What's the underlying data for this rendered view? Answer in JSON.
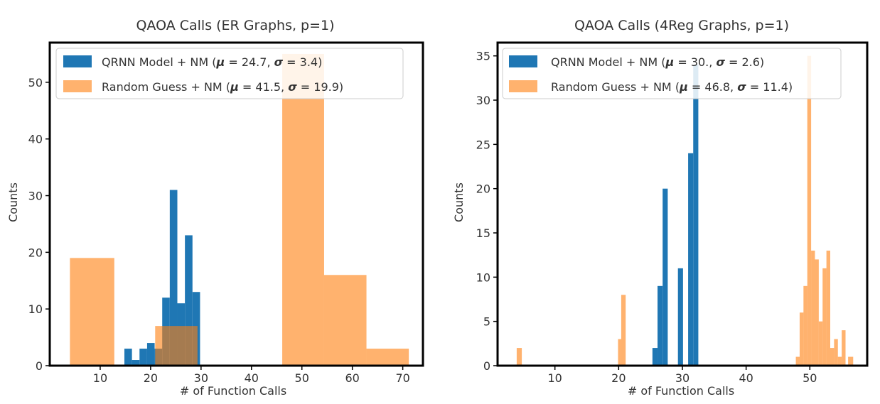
{
  "chart_data": [
    {
      "type": "histogram",
      "title": "QAOA Calls (ER Graphs, p=1)",
      "xlabel": "# of Function Calls",
      "ylabel": "Counts",
      "xlim": [
        0,
        74
      ],
      "ylim": [
        0,
        57
      ],
      "xticks": [
        10,
        20,
        30,
        40,
        50,
        60,
        70
      ],
      "yticks": [
        0,
        10,
        20,
        30,
        40,
        50
      ],
      "legend_position": "top-left",
      "series": [
        {
          "name": "QRNN Model + NM",
          "color": "#1f77b4",
          "legend_label": "QRNN Model + NM (μ = 24.7, σ = 3.4)",
          "legend_parts": [
            "QRNN Model + NM (",
            "μ",
            " = 24.7, ",
            "σ",
            " = 3.4)"
          ],
          "bins": [
            {
              "x0": 14.8,
              "x1": 16.3,
              "count": 3
            },
            {
              "x0": 16.3,
              "x1": 17.8,
              "count": 1
            },
            {
              "x0": 17.8,
              "x1": 19.3,
              "count": 3
            },
            {
              "x0": 19.3,
              "x1": 20.8,
              "count": 4
            },
            {
              "x0": 20.8,
              "x1": 22.3,
              "count": 3
            },
            {
              "x0": 22.3,
              "x1": 23.8,
              "count": 12
            },
            {
              "x0": 23.8,
              "x1": 25.3,
              "count": 31
            },
            {
              "x0": 25.3,
              "x1": 26.8,
              "count": 11
            },
            {
              "x0": 26.8,
              "x1": 28.3,
              "count": 23
            },
            {
              "x0": 28.3,
              "x1": 29.8,
              "count": 13
            }
          ]
        },
        {
          "name": "Random Guess + NM",
          "color": "#ff7f0e",
          "opacity": 0.6,
          "legend_label": "Random Guess + NM (μ = 41.5, σ = 19.9)",
          "legend_parts": [
            "Random Guess + NM (",
            "μ",
            " = 41.5, ",
            "σ",
            " = 19.9)"
          ],
          "bins": [
            {
              "x0": 4.0,
              "x1": 12.8,
              "count": 19
            },
            {
              "x0": 20.9,
              "x1": 29.3,
              "count": 7
            },
            {
              "x0": 46.1,
              "x1": 54.4,
              "count": 55
            },
            {
              "x0": 54.4,
              "x1": 62.8,
              "count": 16
            },
            {
              "x0": 62.8,
              "x1": 71.2,
              "count": 3
            }
          ]
        }
      ]
    },
    {
      "type": "histogram",
      "title": "QAOA Calls (4Reg Graphs, p=1)",
      "xlabel": "# of Function Calls",
      "ylabel": "Counts",
      "xlim": [
        1,
        59
      ],
      "ylim": [
        0,
        36.5
      ],
      "xticks": [
        10,
        20,
        30,
        40,
        50
      ],
      "yticks": [
        0,
        5,
        10,
        15,
        20,
        25,
        30,
        35
      ],
      "legend_position": "top-left",
      "series": [
        {
          "name": "QRNN Model + NM",
          "color": "#1f77b4",
          "legend_label": "QRNN Model + NM (μ = 30., σ = 2.6)",
          "legend_parts": [
            "QRNN Model + NM (",
            "μ",
            " = 30., ",
            "σ",
            " = 2.6)"
          ],
          "bins": [
            {
              "x0": 25.3,
              "x1": 26.1,
              "count": 2
            },
            {
              "x0": 26.1,
              "x1": 26.9,
              "count": 9
            },
            {
              "x0": 26.9,
              "x1": 27.7,
              "count": 20
            },
            {
              "x0": 27.7,
              "x1": 28.5,
              "count": 0
            },
            {
              "x0": 28.5,
              "x1": 29.3,
              "count": 0
            },
            {
              "x0": 29.3,
              "x1": 30.1,
              "count": 11
            },
            {
              "x0": 30.1,
              "x1": 30.9,
              "count": 0
            },
            {
              "x0": 30.9,
              "x1": 31.7,
              "count": 24
            },
            {
              "x0": 31.7,
              "x1": 32.5,
              "count": 34
            }
          ]
        },
        {
          "name": "Random Guess + NM",
          "color": "#ff7f0e",
          "opacity": 0.6,
          "legend_label": "Random Guess + NM (μ = 46.8, σ = 11.4)",
          "legend_parts": [
            "Random Guess + NM (",
            "μ",
            " = 46.8, ",
            "σ",
            " = 11.4)"
          ],
          "bins": [
            {
              "x0": 4.0,
              "x1": 4.8,
              "count": 2
            },
            {
              "x0": 19.9,
              "x1": 20.4,
              "count": 3
            },
            {
              "x0": 20.4,
              "x1": 21.1,
              "count": 8
            },
            {
              "x0": 47.8,
              "x1": 48.4,
              "count": 1
            },
            {
              "x0": 48.4,
              "x1": 49.0,
              "count": 6
            },
            {
              "x0": 49.0,
              "x1": 49.6,
              "count": 9
            },
            {
              "x0": 49.6,
              "x1": 50.2,
              "count": 35
            },
            {
              "x0": 50.2,
              "x1": 50.8,
              "count": 13
            },
            {
              "x0": 50.8,
              "x1": 51.4,
              "count": 12
            },
            {
              "x0": 51.4,
              "x1": 52.0,
              "count": 5
            },
            {
              "x0": 52.0,
              "x1": 52.6,
              "count": 11
            },
            {
              "x0": 52.6,
              "x1": 53.2,
              "count": 13
            },
            {
              "x0": 53.2,
              "x1": 53.8,
              "count": 2
            },
            {
              "x0": 53.8,
              "x1": 54.4,
              "count": 3
            },
            {
              "x0": 54.4,
              "x1": 55.0,
              "count": 1
            },
            {
              "x0": 55.0,
              "x1": 55.6,
              "count": 4
            },
            {
              "x0": 56.0,
              "x1": 56.8,
              "count": 1
            }
          ]
        }
      ]
    }
  ]
}
